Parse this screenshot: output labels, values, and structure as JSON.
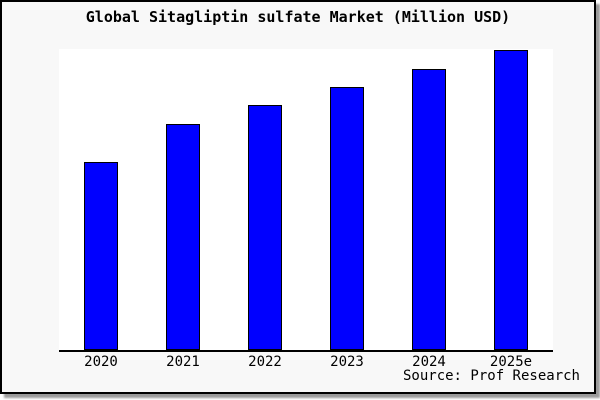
{
  "chart_data": {
    "type": "bar",
    "title": "Global Sitagliptin sulfate Market (Million USD)",
    "categories": [
      "2020",
      "2021",
      "2022",
      "2023",
      "2024",
      "2025e"
    ],
    "values": [
      62.7,
      75.2,
      81.5,
      87.7,
      93.5,
      100
    ],
    "values_note": "No y-axis, gridlines or data labels are shown in the chart; values are relative bar heights normalized so that 2025e = 100.",
    "xlabel": "",
    "ylabel": "",
    "ylim": [
      0,
      100.3
    ],
    "grid": false,
    "legend": false,
    "bar_color": "#0000ff",
    "bar_border_color": "#000000",
    "source": "Source: Prof Research"
  },
  "colors": {
    "card_background": "#f8f8f8",
    "plot_background": "#ffffff",
    "card_border": "#000000",
    "shadow": "#9a9a9a",
    "text": "#000000"
  }
}
